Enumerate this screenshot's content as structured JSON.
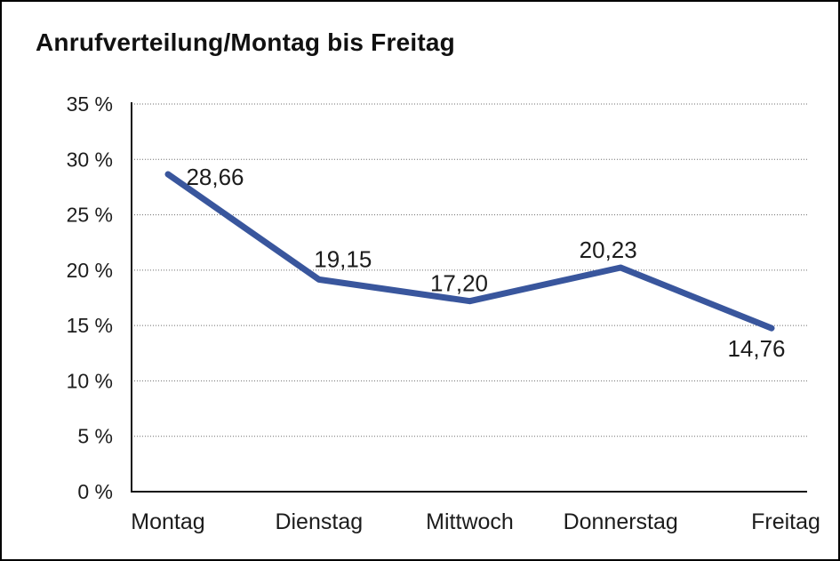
{
  "chart_data": {
    "type": "line",
    "title": "Anrufverteilung/Montag bis Freitag",
    "categories": [
      "Montag",
      "Dienstag",
      "Mittwoch",
      "Donnerstag",
      "Freitag"
    ],
    "series": [
      {
        "name": "Anrufverteilung",
        "values": [
          28.66,
          19.15,
          17.2,
          20.23,
          14.76
        ],
        "point_labels": [
          "28,66",
          "19,15",
          "17,20",
          "20,23",
          "14,76"
        ]
      }
    ],
    "xlabel": "",
    "ylabel": "",
    "ylim": [
      0,
      35
    ],
    "ytick_step": 5,
    "ytick_labels": [
      "0 %",
      "5 %",
      "10 %",
      "15 %",
      "20 %",
      "25 %",
      "30 %",
      "35 %"
    ],
    "grid": "horizontal-dotted",
    "legend": "none",
    "colors": {
      "line": "#39569D",
      "axis": "#111111",
      "gridline": "#6e6e6e",
      "text": "#1c1c1c",
      "background": "#ffffff",
      "frame_border": "#000000"
    }
  }
}
